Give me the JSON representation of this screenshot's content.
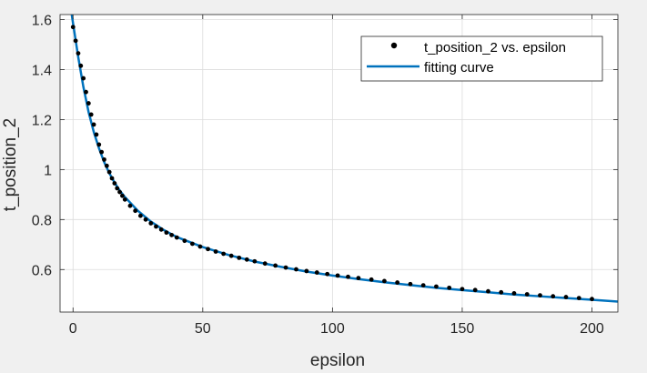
{
  "chart_data": {
    "type": "scatter",
    "xlabel": "epsilon",
    "ylabel": "t_position_2",
    "xlim": [
      -5,
      210
    ],
    "ylim": [
      0.43,
      1.62
    ],
    "xticks": [
      0,
      50,
      100,
      150,
      200
    ],
    "xtick_labels": [
      "0",
      "50",
      "100",
      "150",
      "200"
    ],
    "yticks": [
      0.6,
      0.8,
      1.0,
      1.2,
      1.4,
      1.6
    ],
    "ytick_labels": [
      "0.6",
      "0.8",
      "1",
      "1.2",
      "1.4",
      "1.6"
    ],
    "grid": true,
    "legend_position": "top-right",
    "series": [
      {
        "name": "t_position_2 vs. epsilon",
        "kind": "scatter",
        "color": "#000000",
        "x": [
          0,
          1,
          2,
          3,
          4,
          5,
          6,
          7,
          8,
          9,
          10,
          11,
          12,
          13,
          14,
          15,
          16,
          17,
          18,
          19,
          20,
          22,
          24,
          26,
          28,
          30,
          32,
          34,
          36,
          38,
          40,
          43,
          46,
          49,
          52,
          55,
          58,
          61,
          64,
          67,
          70,
          74,
          78,
          82,
          86,
          90,
          94,
          98,
          102,
          106,
          110,
          115,
          120,
          125,
          130,
          135,
          140,
          145,
          150,
          155,
          160,
          165,
          170,
          175,
          180,
          185,
          190,
          195,
          200
        ],
        "y": [
          1.57,
          1.515,
          1.465,
          1.415,
          1.365,
          1.31,
          1.265,
          1.22,
          1.18,
          1.14,
          1.1,
          1.07,
          1.04,
          1.015,
          0.99,
          0.965,
          0.945,
          0.925,
          0.91,
          0.895,
          0.88,
          0.855,
          0.835,
          0.815,
          0.8,
          0.785,
          0.772,
          0.76,
          0.748,
          0.738,
          0.728,
          0.715,
          0.703,
          0.692,
          0.682,
          0.672,
          0.663,
          0.655,
          0.647,
          0.64,
          0.633,
          0.624,
          0.616,
          0.608,
          0.601,
          0.594,
          0.588,
          0.582,
          0.576,
          0.571,
          0.566,
          0.56,
          0.554,
          0.548,
          0.542,
          0.537,
          0.532,
          0.527,
          0.522,
          0.518,
          0.513,
          0.509,
          0.505,
          0.501,
          0.497,
          0.493,
          0.49,
          0.486,
          0.482
        ]
      },
      {
        "name": "fitting curve",
        "kind": "line",
        "color": "#0072bd",
        "x": [
          -0.5,
          0,
          2,
          4,
          6,
          8,
          10,
          12,
          14,
          16,
          18,
          20,
          25,
          30,
          35,
          40,
          50,
          60,
          70,
          80,
          90,
          100,
          110,
          120,
          130,
          140,
          150,
          160,
          170,
          180,
          190,
          200,
          210
        ],
        "y": [
          1.62,
          1.585,
          1.45,
          1.33,
          1.23,
          1.15,
          1.085,
          1.03,
          0.985,
          0.948,
          0.916,
          0.89,
          0.835,
          0.792,
          0.758,
          0.73,
          0.69,
          0.658,
          0.632,
          0.611,
          0.592,
          0.576,
          0.562,
          0.549,
          0.538,
          0.527,
          0.518,
          0.509,
          0.5,
          0.493,
          0.486,
          0.479,
          0.472
        ]
      }
    ]
  }
}
